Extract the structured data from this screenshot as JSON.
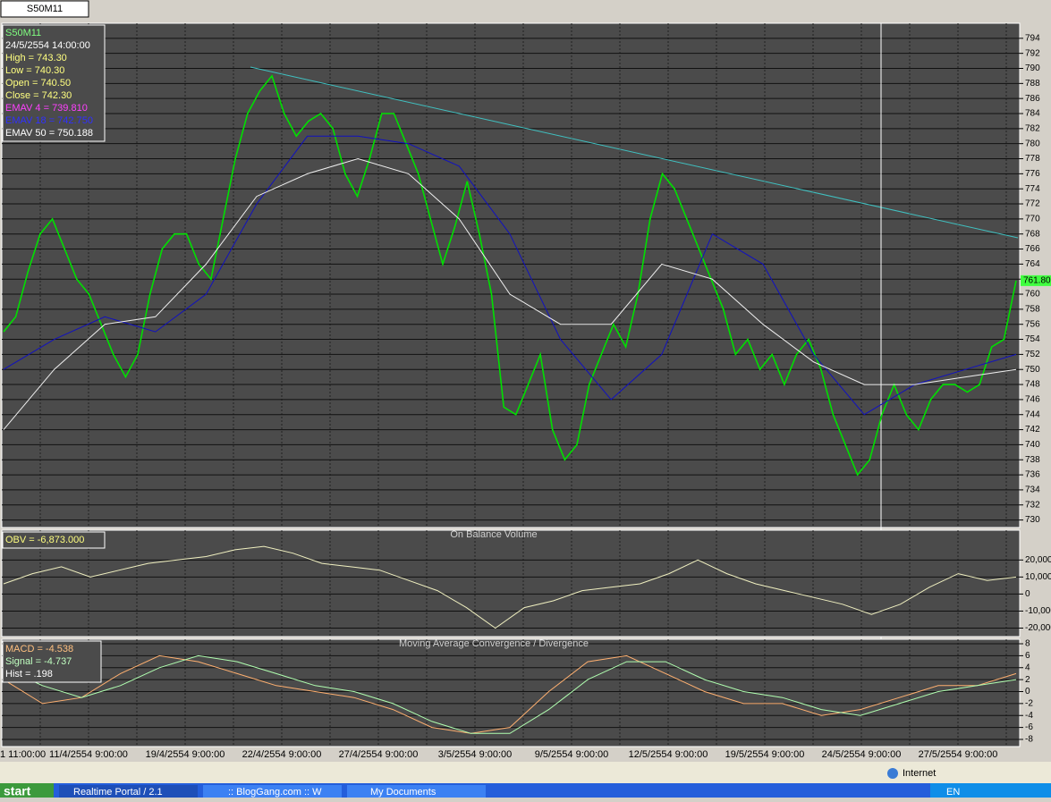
{
  "ui": {
    "tab": "S50M11",
    "status": "Internet",
    "taskbar": [
      "start",
      "Realtime Portal / 2.1",
      ":: BlogGang.com :: W",
      "My Documents",
      "EN"
    ]
  },
  "x_labels": [
    "1 11:00:00",
    "11/4/2554 9:00:00",
    "19/4/2554 9:00:00",
    "22/4/2554 9:00:00",
    "27/4/2554 9:00:00",
    "3/5/2554 9:00:00",
    "9/5/2554 9:00:00",
    "12/5/2554 9:00:00",
    "19/5/2554 9:00:00",
    "24/5/2554 9:00:00",
    "27/5/2554 9:00:00"
  ],
  "chart_data": [
    {
      "type": "line",
      "info": [
        "S50M11",
        "24/5/2554 14:00:00",
        "High  = 743.30",
        "Low  = 740.30",
        "Open = 740.50",
        "Close = 742.30",
        "EMAV 4 = 739.810",
        "EMAV 18 = 742.750",
        "EMAV 50 = 750.188"
      ],
      "info_colors": [
        "#80ff80",
        "#ffffff",
        "#ffff80",
        "#ffff80",
        "#ffff80",
        "#ffff80",
        "#ff40ff",
        "#3030ff",
        "#ffffff"
      ],
      "last_label": "761.80",
      "ylim": [
        729,
        796
      ],
      "yticks": [
        730,
        732,
        734,
        736,
        738,
        740,
        742,
        744,
        746,
        748,
        750,
        752,
        754,
        756,
        758,
        760,
        762,
        764,
        766,
        768,
        770,
        772,
        774,
        776,
        778,
        780,
        782,
        784,
        786,
        788,
        790,
        792,
        794
      ],
      "grid": true,
      "series": [
        {
          "color": "#00e000",
          "values": [
            755,
            757,
            763,
            768,
            770,
            766,
            762,
            760,
            756,
            752,
            749,
            752,
            760,
            766,
            768,
            768,
            764,
            762,
            770,
            778,
            784,
            787,
            789,
            784,
            781,
            783,
            784,
            782,
            776,
            773,
            778,
            784,
            784,
            780,
            776,
            770,
            764,
            769,
            775,
            768,
            760,
            745,
            744,
            748,
            752,
            742,
            738,
            740,
            748,
            752,
            756,
            753,
            760,
            770,
            776,
            774,
            770,
            766,
            762,
            758,
            752,
            754,
            750,
            752,
            748,
            752,
            754,
            750,
            744,
            740,
            736,
            738,
            744,
            748,
            744,
            742,
            746,
            748,
            748,
            747,
            748,
            753,
            754,
            761.8
          ]
        },
        {
          "color": "#1010c0",
          "values": [
            750,
            754,
            757,
            755,
            760,
            772,
            781,
            781,
            780,
            777,
            768,
            754,
            746,
            752,
            768,
            764,
            752,
            744,
            748,
            750,
            752
          ]
        },
        {
          "color": "#f0f0f0",
          "values": [
            742,
            750,
            756,
            757,
            764,
            773,
            776,
            778,
            776,
            770,
            760,
            756,
            756,
            764,
            762,
            756,
            751,
            748,
            748,
            749,
            750
          ]
        }
      ]
    },
    {
      "type": "line",
      "title": "On Balance Volume",
      "info": [
        "OBV = -6,873.000"
      ],
      "info_colors": [
        "#ffff80"
      ],
      "ylim": [
        -25000,
        37500
      ],
      "yticks": [
        {
          "value": 20000,
          "label": "20,000"
        },
        {
          "value": 10000,
          "label": "10,000"
        },
        0,
        {
          "value": -10000,
          "label": "-10,000"
        },
        {
          "value": -20000,
          "label": "-20,000"
        }
      ],
      "grid": true,
      "series": [
        {
          "color": "#f0f0c0",
          "values": [
            6000,
            12000,
            16000,
            10000,
            14000,
            18000,
            20000,
            22000,
            26000,
            28000,
            24000,
            18000,
            16000,
            14000,
            8000,
            2000,
            -8000,
            -20000,
            -8000,
            -4000,
            2000,
            4000,
            6000,
            12000,
            20000,
            12000,
            6000,
            2000,
            -2000,
            -6000,
            -12000,
            -6000,
            4000,
            12000,
            8000,
            10000
          ]
        }
      ]
    },
    {
      "type": "line",
      "title": "Moving Average Convergence / Divergence",
      "info": [
        "MACD = -4.538",
        "Signal = -4.737",
        "Hist = .198"
      ],
      "info_colors": [
        "#ffc080",
        "#c0ffc0",
        "#ffffff"
      ],
      "ylim": [
        -9.2,
        8.75
      ],
      "yticks": [
        8,
        6,
        4,
        2,
        0,
        -2,
        -4,
        -6,
        -8
      ],
      "grid": true,
      "series": [
        {
          "color": "#ffb070",
          "values": [
            2,
            -2,
            -1,
            3,
            6,
            5,
            3,
            1,
            0,
            -1,
            -3,
            -6,
            -7,
            -6,
            0,
            5,
            6,
            3,
            0,
            -2,
            -2,
            -4,
            -3,
            -1,
            1,
            1,
            3
          ]
        },
        {
          "color": "#b0ffb0",
          "values": [
            4,
            1,
            -1,
            1,
            4,
            6,
            5,
            3,
            1,
            0,
            -2,
            -5,
            -7,
            -7,
            -3,
            2,
            5,
            5,
            2,
            0,
            -1,
            -3,
            -4,
            -2,
            0,
            1,
            2
          ]
        }
      ]
    }
  ]
}
